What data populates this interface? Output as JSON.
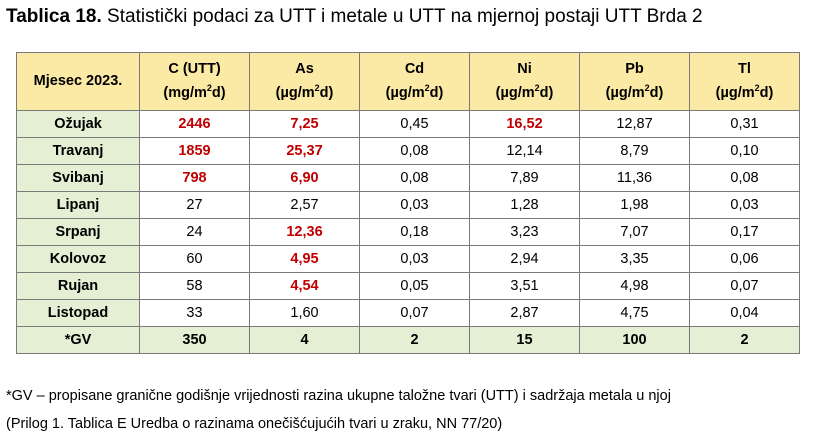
{
  "caption": {
    "lead": "Tablica 18.",
    "text": " Statistički podaci za UTT i metale u UTT na mjernoj postaji UTT Brda 2"
  },
  "table": {
    "headers": [
      {
        "line1": "Mjesec 2023.",
        "unit_pre": "",
        "unit_sup": "",
        "unit_post": ""
      },
      {
        "line1": "C (UTT)",
        "unit_pre": "(mg/m",
        "unit_sup": "2",
        "unit_post": "d)"
      },
      {
        "line1": "As",
        "unit_pre": "(µg/m",
        "unit_sup": "2",
        "unit_post": "d)"
      },
      {
        "line1": "Cd",
        "unit_pre": "(µg/m",
        "unit_sup": "2",
        "unit_post": "d)"
      },
      {
        "line1": "Ni",
        "unit_pre": "(µg/m",
        "unit_sup": "2",
        "unit_post": "d)"
      },
      {
        "line1": "Pb",
        "unit_pre": "(µg/m",
        "unit_sup": "2",
        "unit_post": "d)"
      },
      {
        "line1": "Tl",
        "unit_pre": "(µg/m",
        "unit_sup": "2",
        "unit_post": "d)"
      }
    ],
    "rows": [
      {
        "month": "Ožujak",
        "cells": [
          "2446",
          "7,25",
          "0,45",
          "16,52",
          "12,87",
          "0,31"
        ],
        "exceed": [
          true,
          true,
          false,
          true,
          false,
          false
        ]
      },
      {
        "month": "Travanj",
        "cells": [
          "1859",
          "25,37",
          "0,08",
          "12,14",
          "8,79",
          "0,10"
        ],
        "exceed": [
          true,
          true,
          false,
          false,
          false,
          false
        ]
      },
      {
        "month": "Svibanj",
        "cells": [
          "798",
          "6,90",
          "0,08",
          "7,89",
          "11,36",
          "0,08"
        ],
        "exceed": [
          true,
          true,
          false,
          false,
          false,
          false
        ]
      },
      {
        "month": "Lipanj",
        "cells": [
          "27",
          "2,57",
          "0,03",
          "1,28",
          "1,98",
          "0,03"
        ],
        "exceed": [
          false,
          false,
          false,
          false,
          false,
          false
        ]
      },
      {
        "month": "Srpanj",
        "cells": [
          "24",
          "12,36",
          "0,18",
          "3,23",
          "7,07",
          "0,17"
        ],
        "exceed": [
          false,
          true,
          false,
          false,
          false,
          false
        ]
      },
      {
        "month": "Kolovoz",
        "cells": [
          "60",
          "4,95",
          "0,03",
          "2,94",
          "3,35",
          "0,06"
        ],
        "exceed": [
          false,
          true,
          false,
          false,
          false,
          false
        ]
      },
      {
        "month": "Rujan",
        "cells": [
          "58",
          "4,54",
          "0,05",
          "3,51",
          "4,98",
          "0,07"
        ],
        "exceed": [
          false,
          true,
          false,
          false,
          false,
          false
        ]
      },
      {
        "month": "Listopad",
        "cells": [
          "33",
          "1,60",
          "0,07",
          "2,87",
          "4,75",
          "0,04"
        ],
        "exceed": [
          false,
          false,
          false,
          false,
          false,
          false
        ]
      }
    ],
    "gv_row": {
      "label": "*GV",
      "cells": [
        "350",
        "4",
        "2",
        "15",
        "100",
        "2"
      ]
    },
    "colors": {
      "header_bg": "#fbe9a6",
      "month_bg": "#e4efd4",
      "exceed_text": "#c00000",
      "border": "#7a7a7a"
    }
  },
  "footnote": {
    "line1": "*GV – propisane granične godišnje vrijednosti razina ukupne taložne tvari (UTT) i sadržaja metala u njoj",
    "line2": "(Prilog 1. Tablica E Uredba o razinama onečišćujućih tvari u zraku, NN 77/20)"
  }
}
